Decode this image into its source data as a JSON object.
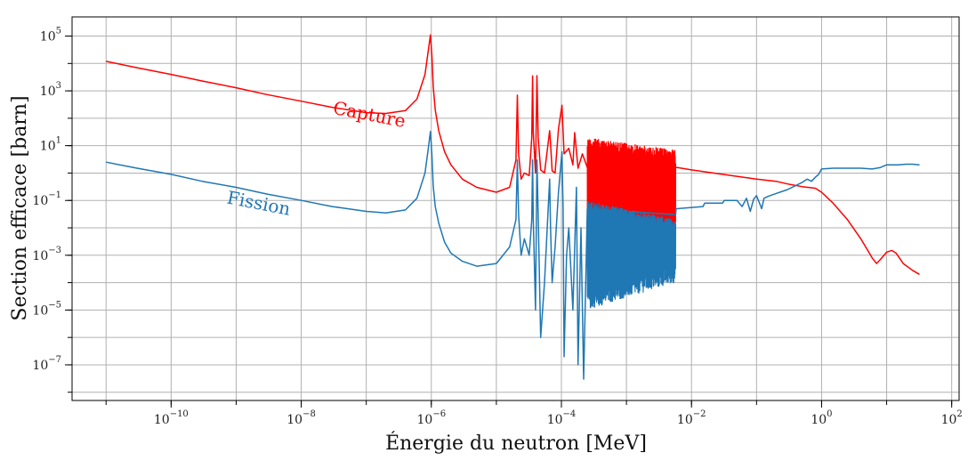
{
  "chart_data": {
    "type": "line",
    "title": "",
    "xlabel": "Énergie du neutron [MeV]",
    "ylabel": "Section efficace [barn]",
    "x_scale": "log",
    "y_scale": "log",
    "xlim": [
      3e-12,
      130
    ],
    "ylim": [
      5e-09,
      500000.0
    ],
    "x_ticks": [
      {
        "value": 1e-10,
        "base": "10",
        "exp": "−10"
      },
      {
        "value": 1e-08,
        "base": "10",
        "exp": "−8"
      },
      {
        "value": 1e-06,
        "base": "10",
        "exp": "−6"
      },
      {
        "value": 0.0001,
        "base": "10",
        "exp": "−4"
      },
      {
        "value": 0.01,
        "base": "10",
        "exp": "−2"
      },
      {
        "value": 1,
        "base": "10",
        "exp": "0"
      },
      {
        "value": 100,
        "base": "10",
        "exp": "2"
      }
    ],
    "y_ticks": [
      {
        "value": 100000.0,
        "base": "10",
        "exp": "5"
      },
      {
        "value": 1000.0,
        "base": "10",
        "exp": "3"
      },
      {
        "value": 10,
        "base": "10",
        "exp": "1"
      },
      {
        "value": 0.1,
        "base": "10",
        "exp": "−1"
      },
      {
        "value": 0.001,
        "base": "10",
        "exp": "−3"
      },
      {
        "value": 1e-05,
        "base": "10",
        "exp": "−5"
      },
      {
        "value": 1e-07,
        "base": "10",
        "exp": "−7"
      }
    ],
    "grid": true,
    "series": [
      {
        "name": "Capture",
        "color": "#ff0000",
        "resonance_band": {
          "x_from": 0.00025,
          "x_to": 0.0057,
          "y_high": [
            20,
            7
          ],
          "y_low": [
            0.02,
            0.004
          ]
        },
        "x": [
          1e-11,
          3e-11,
          1e-10,
          3e-10,
          1e-09,
          3e-09,
          1e-08,
          3e-08,
          1e-07,
          2e-07,
          4e-07,
          6e-07,
          8e-07,
          9e-07,
          9.7e-07,
          1.02e-06,
          1.07e-06,
          1.15e-06,
          1.3e-06,
          1.6e-06,
          2e-06,
          3e-06,
          5e-06,
          1e-05,
          1.6e-05,
          2e-05,
          2.1e-05,
          2.2e-05,
          2.4e-05,
          2.7e-05,
          3.2e-05,
          3.5e-05,
          3.6e-05,
          3.7e-05,
          4e-05,
          4.2e-05,
          4.4e-05,
          4.8e-05,
          5.5e-05,
          6.6e-05,
          6.8e-05,
          7.2e-05,
          8e-05,
          9e-05,
          0.000102,
          0.00011,
          0.00013,
          0.00015,
          0.00016,
          0.00018,
          0.00021,
          0.00025,
          0.006,
          0.01,
          0.03,
          0.1,
          0.2,
          0.3,
          0.5,
          0.8,
          1.0,
          1.5,
          2.5,
          4,
          6,
          7,
          8,
          10,
          12,
          14,
          18,
          25,
          32
        ],
        "y": [
          12000,
          7000,
          4000,
          2300,
          1300,
          730,
          420,
          250,
          160,
          150,
          190,
          500,
          4000,
          30000,
          110000,
          20000,
          1500,
          200,
          35,
          6,
          2,
          0.6,
          0.3,
          0.2,
          0.3,
          3,
          700,
          5,
          0.6,
          1,
          0.8,
          20,
          3500,
          30,
          1,
          3600,
          20,
          1.3,
          1,
          35,
          12,
          1.2,
          1,
          40,
          300,
          5,
          8,
          2,
          30,
          1.5,
          5,
          1.6,
          1.6,
          1.3,
          0.9,
          0.6,
          0.5,
          0.4,
          0.32,
          0.28,
          0.2,
          0.08,
          0.02,
          0.004,
          0.0008,
          0.0005,
          0.0007,
          0.0013,
          0.0015,
          0.0012,
          0.0005,
          0.00028,
          0.0002
        ]
      },
      {
        "name": "Fission",
        "color": "#1f77b4",
        "resonance_band": {
          "x_from": 0.00025,
          "x_to": 0.0057,
          "y_high": [
            0.1,
            0.02
          ],
          "y_low": [
            1e-05,
            0.0001
          ]
        },
        "x": [
          1e-11,
          3e-11,
          1e-10,
          3e-10,
          1e-09,
          3e-09,
          1e-08,
          3e-08,
          1e-07,
          2e-07,
          4e-07,
          6e-07,
          8e-07,
          9e-07,
          9.7e-07,
          1.02e-06,
          1.07e-06,
          1.15e-06,
          1.3e-06,
          1.6e-06,
          2e-06,
          3e-06,
          5e-06,
          1e-05,
          1.6e-05,
          2e-05,
          2.1e-05,
          2.2e-05,
          2.4e-05,
          2.7e-05,
          3.2e-05,
          3.5e-05,
          3.6e-05,
          3.7e-05,
          4e-05,
          4.2e-05,
          4.4e-05,
          4.8e-05,
          5.5e-05,
          6.6e-05,
          6.8e-05,
          7.2e-05,
          8e-05,
          9e-05,
          0.000102,
          0.000106,
          0.00011,
          0.00012,
          0.00013,
          0.00015,
          0.00017,
          0.00018,
          0.0002,
          0.00022,
          0.00025,
          0.0057,
          0.0058,
          0.015,
          0.016,
          0.03,
          0.032,
          0.05,
          0.06,
          0.07,
          0.08,
          0.09,
          0.1,
          0.12,
          0.13,
          0.15,
          0.2,
          0.3,
          0.4,
          0.5,
          0.6,
          0.7,
          0.8,
          0.9,
          1.0,
          1.5,
          2,
          4,
          6,
          8,
          10,
          15,
          20,
          25,
          32
        ],
        "y": [
          2.5,
          1.5,
          0.9,
          0.5,
          0.3,
          0.17,
          0.1,
          0.06,
          0.04,
          0.035,
          0.045,
          0.12,
          1,
          8,
          33,
          5,
          0.35,
          0.06,
          0.015,
          0.003,
          0.0012,
          0.0006,
          0.0004,
          0.0005,
          0.002,
          0.02,
          3,
          0.03,
          0.001,
          0.004,
          0.001,
          0.02,
          3,
          0.02,
          1e-05,
          3,
          0.03,
          1e-06,
          0.0001,
          0.6,
          0.01,
          0.0001,
          0.002,
          0.2,
          6,
          0.05,
          2e-07,
          0.001,
          0.01,
          1e-05,
          0.3,
          1e-07,
          0.01,
          3e-08,
          0.05,
          0.03,
          0.05,
          0.06,
          0.08,
          0.08,
          0.1,
          0.1,
          0.06,
          0.12,
          0.04,
          0.11,
          0.15,
          0.05,
          0.12,
          0.14,
          0.18,
          0.25,
          0.35,
          0.45,
          0.6,
          0.5,
          0.7,
          0.9,
          1.4,
          1.5,
          1.5,
          1.5,
          1.4,
          1.6,
          2.0,
          2.0,
          2.1,
          2.1,
          2.0
        ]
      }
    ],
    "annotations": [
      {
        "text": "Capture",
        "color": "#ff0000",
        "x": 3e-08,
        "y": 150,
        "rotation": 11
      },
      {
        "text": "Fission",
        "color": "#1f77b4",
        "x": 7e-10,
        "y": 0.08,
        "rotation": 11
      }
    ]
  }
}
